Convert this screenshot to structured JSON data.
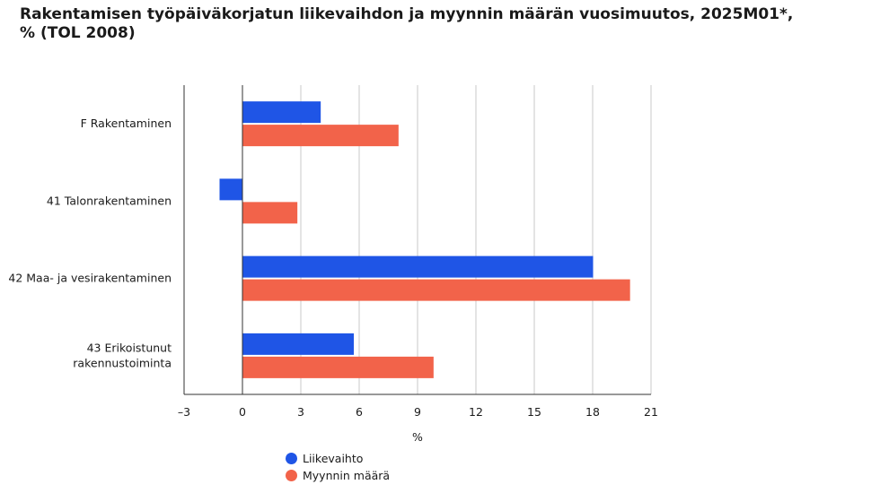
{
  "chart_data": {
    "type": "bar",
    "orientation": "horizontal",
    "title": "Rakentamisen työpäiväkorjatun liikevaihdon ja myynnin määrän vuosimuutos, 2025M01*,\n% (TOL 2008)",
    "xlabel": "%",
    "ylabel": "",
    "xlim": [
      -3,
      21
    ],
    "xticks": [
      -3,
      0,
      3,
      6,
      9,
      12,
      15,
      18,
      21
    ],
    "xtick_labels": [
      "–3",
      "0",
      "3",
      "6",
      "9",
      "12",
      "15",
      "18",
      "21"
    ],
    "grid": "vertical",
    "legend_position": "bottom",
    "categories": [
      "F Rakentaminen",
      "41 Talonrakentaminen",
      "42 Maa- ja vesirakentaminen",
      "43 Erikoistunut\nrakennustoiminta"
    ],
    "series": [
      {
        "name": "Liikevaihto",
        "color": "#1f55e6",
        "values": [
          4.0,
          -1.2,
          18.0,
          5.7
        ]
      },
      {
        "name": "Myynnin määrä",
        "color": "#f2634a",
        "values": [
          8.0,
          2.8,
          19.9,
          9.8
        ]
      }
    ]
  }
}
